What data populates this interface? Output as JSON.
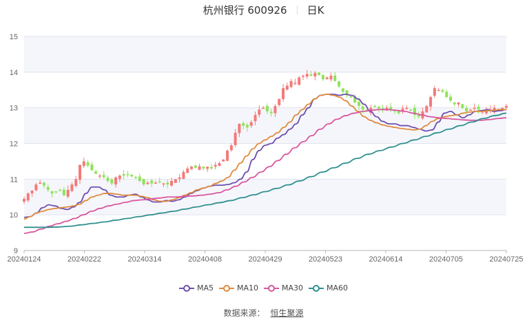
{
  "header": {
    "stock_name": "杭州银行 600926",
    "period": "日K"
  },
  "legend": [
    {
      "label": "MA5",
      "color": "#6e4fb0"
    },
    {
      "label": "MA10",
      "color": "#e08a3c"
    },
    {
      "label": "MA30",
      "color": "#d9559e"
    },
    {
      "label": "MA60",
      "color": "#2e8f8f"
    }
  ],
  "footer": {
    "source_label": "数据来源：",
    "source_name": "恒生聚源"
  },
  "colors": {
    "up": "#f47a7a",
    "down": "#8fe35a",
    "band": "#f5f6fb",
    "grid": "#dfe3ee",
    "axis": "#b5b5b5"
  },
  "chart_data": {
    "type": "candlestick",
    "title": "杭州银行 600926 日K",
    "xlabel": "",
    "ylabel": "",
    "ylim": [
      9,
      15
    ],
    "yticks": [
      9,
      10,
      11,
      12,
      13,
      14,
      15
    ],
    "xtick_labels": [
      "20240124",
      "20240222",
      "20240314",
      "20240408",
      "20240429",
      "20240523",
      "20240614",
      "20240705",
      "20240725"
    ],
    "grid": true,
    "legend_position": "bottom",
    "n_days": 122,
    "candles_close_path": [
      10.45,
      10.6,
      10.68,
      10.85,
      10.9,
      10.82,
      10.7,
      10.6,
      10.65,
      10.7,
      10.55,
      10.7,
      10.85,
      11.0,
      11.4,
      11.5,
      11.38,
      11.25,
      11.15,
      11.1,
      11.05,
      10.95,
      10.88,
      11.05,
      11.1,
      11.1,
      11.12,
      11.08,
      11.05,
      10.95,
      10.85,
      10.9,
      10.88,
      10.9,
      10.92,
      10.88,
      10.85,
      10.95,
      11.0,
      11.05,
      11.2,
      11.3,
      11.35,
      11.32,
      11.36,
      11.3,
      11.35,
      11.3,
      11.4,
      11.45,
      11.55,
      11.8,
      11.95,
      12.3,
      12.55,
      12.5,
      12.45,
      12.6,
      12.8,
      12.95,
      13.0,
      12.9,
      12.85,
      13.05,
      13.25,
      13.55,
      13.62,
      13.75,
      13.7,
      13.85,
      13.9,
      13.95,
      13.9,
      13.98,
      13.92,
      13.8,
      13.85,
      13.9,
      13.75,
      13.6,
      13.45,
      13.35,
      13.3,
      13.15,
      13.05,
      12.95,
      12.9,
      13.0,
      13.05,
      12.98,
      12.95,
      13.0,
      12.95,
      12.9,
      12.85,
      12.98,
      13.0,
      12.95,
      12.8,
      12.75,
      12.9,
      13.05,
      13.3,
      13.55,
      13.5,
      13.45,
      13.3,
      13.2,
      13.1,
      13.15,
      13.0,
      12.9,
      12.95,
      13.0,
      12.95,
      12.9,
      12.95,
      12.95,
      13.0,
      12.95,
      13.0,
      13.05
    ],
    "series": [
      {
        "name": "MA5",
        "points_desc": "starts ~9.93, bump to 10.28 in early Feb, peaks ~10.78 at 20240222, dips ~10.35 mid-March, rises steeply to ~13.38 at 20240523, declines to ~12.35 late June, bump to ~12.9 early July, ends ~12.95",
        "values": [
          9.93,
          9.95,
          10.05,
          10.2,
          10.28,
          10.25,
          10.18,
          10.15,
          10.22,
          10.35,
          10.6,
          10.78,
          10.78,
          10.7,
          10.55,
          10.5,
          10.5,
          10.55,
          10.58,
          10.5,
          10.42,
          10.36,
          10.36,
          10.4,
          10.38,
          10.42,
          10.5,
          10.6,
          10.68,
          10.75,
          10.8,
          10.83,
          10.83,
          10.85,
          10.9,
          11.0,
          11.2,
          11.55,
          11.8,
          11.95,
          12.0,
          12.15,
          12.25,
          12.4,
          12.55,
          12.8,
          13.0,
          13.25,
          13.35,
          13.38,
          13.38,
          13.35,
          13.38,
          13.35,
          13.25,
          13.1,
          12.9,
          12.75,
          12.62,
          12.55,
          12.55,
          12.5,
          12.5,
          12.45,
          12.4,
          12.35,
          12.38,
          12.6,
          12.85,
          12.9,
          12.8,
          12.72,
          12.8,
          12.9,
          12.92,
          12.95,
          12.9,
          12.92,
          12.95
        ]
      },
      {
        "name": "MA10",
        "points_desc": "starts ~9.88, rises to ~10.55 late Feb, flat ~10.5, dips ~10.38 mid-March, rises to ~13.4 late May, declines to ~12.4 late June, ends ~12.95",
        "values": [
          9.88,
          9.95,
          10.05,
          10.1,
          10.15,
          10.18,
          10.2,
          10.22,
          10.25,
          10.3,
          10.4,
          10.5,
          10.55,
          10.6,
          10.6,
          10.58,
          10.55,
          10.55,
          10.55,
          10.52,
          10.48,
          10.42,
          10.38,
          10.38,
          10.42,
          10.48,
          10.55,
          10.62,
          10.7,
          10.75,
          10.8,
          10.88,
          10.95,
          11.05,
          11.25,
          11.45,
          11.65,
          11.85,
          12.0,
          12.1,
          12.2,
          12.3,
          12.45,
          12.6,
          12.8,
          12.95,
          13.1,
          13.25,
          13.35,
          13.38,
          13.35,
          13.3,
          13.2,
          13.05,
          12.9,
          12.75,
          12.65,
          12.58,
          12.52,
          12.48,
          12.45,
          12.42,
          12.4,
          12.38,
          12.4,
          12.5,
          12.62,
          12.7,
          12.75,
          12.78,
          12.8,
          12.85,
          12.88,
          12.9,
          12.9,
          12.92,
          12.93,
          12.95,
          12.95
        ]
      },
      {
        "name": "MA30",
        "points_desc": "starts ~9.48, rises to ~10.4 mid-March, flat ~10.5 through early April, rises to ~12.8 early June, peak ~12.95 mid-June, declines gently to ~12.65, ends ~12.72",
        "values": [
          9.48,
          9.52,
          9.6,
          9.68,
          9.75,
          9.82,
          9.9,
          10.0,
          10.1,
          10.18,
          10.25,
          10.3,
          10.35,
          10.4,
          10.42,
          10.45,
          10.47,
          10.5,
          10.5,
          10.52,
          10.53,
          10.55,
          10.58,
          10.62,
          10.7,
          10.8,
          10.92,
          11.05,
          11.2,
          11.35,
          11.52,
          11.7,
          11.88,
          12.05,
          12.22,
          12.4,
          12.55,
          12.68,
          12.78,
          12.85,
          12.9,
          12.93,
          12.95,
          12.95,
          12.93,
          12.9,
          12.85,
          12.8,
          12.75,
          12.72,
          12.7,
          12.68,
          12.66,
          12.65,
          12.65,
          12.67,
          12.7,
          12.72
        ]
      },
      {
        "name": "MA60",
        "points_desc": "flat ~9.65 until late Feb, then steady rise to ~12.3 early July, ends ~12.85",
        "values": [
          9.65,
          9.65,
          9.65,
          9.66,
          9.68,
          9.72,
          9.76,
          9.8,
          9.85,
          9.9,
          9.95,
          10.0,
          10.05,
          10.1,
          10.16,
          10.22,
          10.28,
          10.34,
          10.4,
          10.48,
          10.56,
          10.65,
          10.74,
          10.84,
          10.95,
          11.07,
          11.2,
          11.32,
          11.45,
          11.58,
          11.7,
          11.8,
          11.9,
          12.0,
          12.1,
          12.2,
          12.3,
          12.4,
          12.5,
          12.6,
          12.7,
          12.78,
          12.85
        ]
      }
    ]
  }
}
